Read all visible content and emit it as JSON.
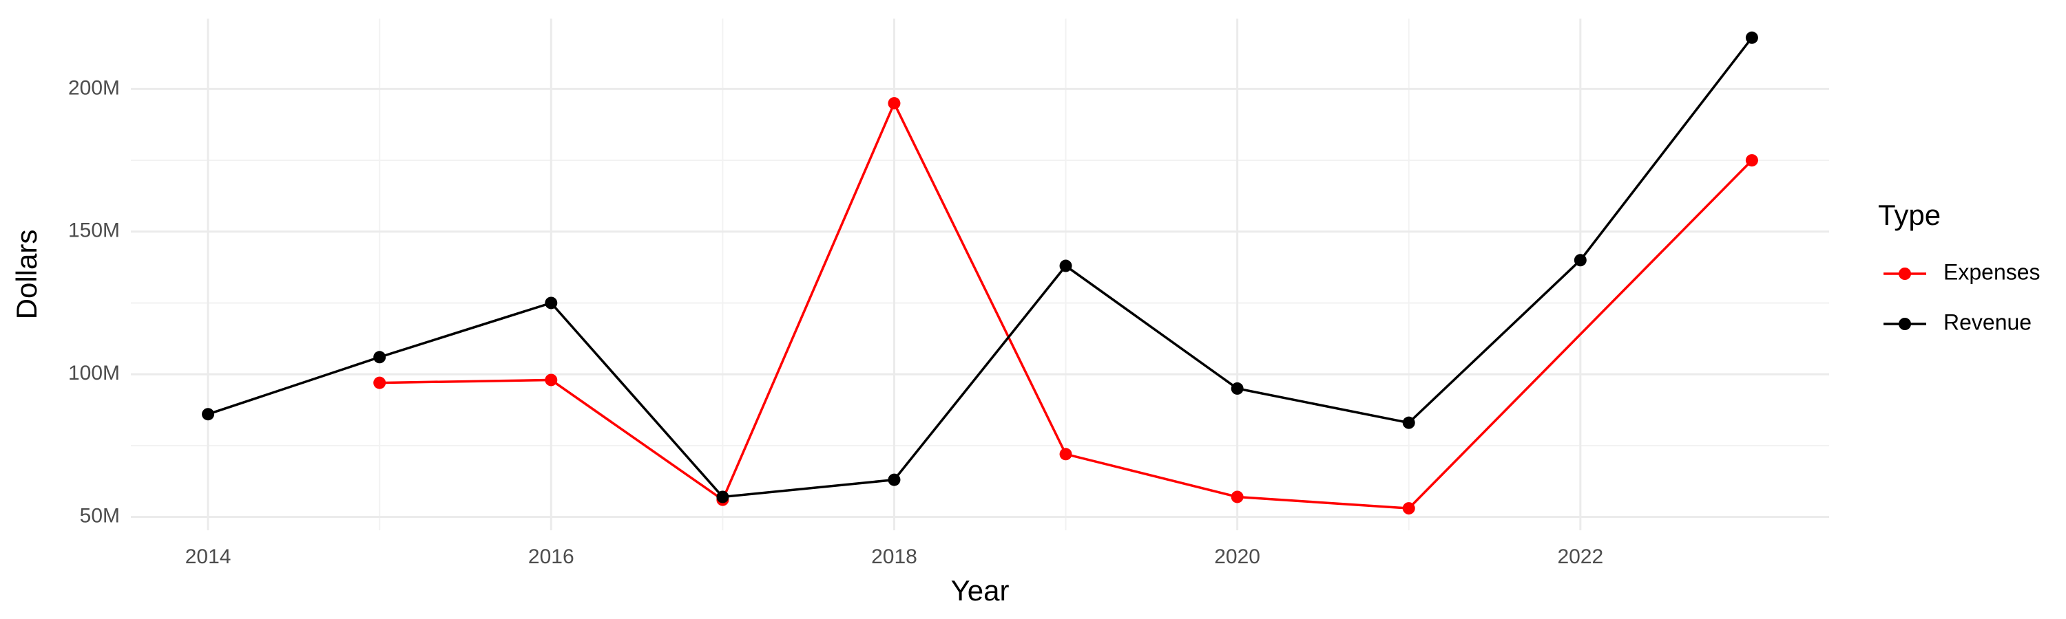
{
  "chart_data": {
    "type": "line",
    "x_label": "Year",
    "y_label": "Dollars",
    "legend_title": "Type",
    "legend": "right",
    "grid": true,
    "series": [
      {
        "name": "Expenses",
        "color": "#ff0000",
        "x": [
          2015,
          2016,
          2017,
          2018,
          2019,
          2020,
          2021,
          2023
        ],
        "values": [
          97000000,
          98000000,
          56000000,
          195000000,
          72000000,
          57000000,
          53000000,
          175000000
        ]
      },
      {
        "name": "Revenue",
        "color": "#000000",
        "x": [
          2014,
          2015,
          2016,
          2017,
          2018,
          2019,
          2020,
          2021,
          2022,
          2023
        ],
        "values": [
          86000000,
          106000000,
          125000000,
          57000000,
          63000000,
          138000000,
          95000000,
          83000000,
          140000000,
          218000000
        ]
      }
    ],
    "xlim": [
      2013.55,
      2023.45
    ],
    "xticks": [
      2014,
      2016,
      2018,
      2020,
      2022
    ],
    "ylim": [
      45300000,
      224700000
    ],
    "yticks": [
      {
        "value": 50000000,
        "label": "50M"
      },
      {
        "value": 100000000,
        "label": "100M"
      },
      {
        "value": 150000000,
        "label": "150M"
      },
      {
        "value": 200000000,
        "label": "200M"
      }
    ]
  }
}
